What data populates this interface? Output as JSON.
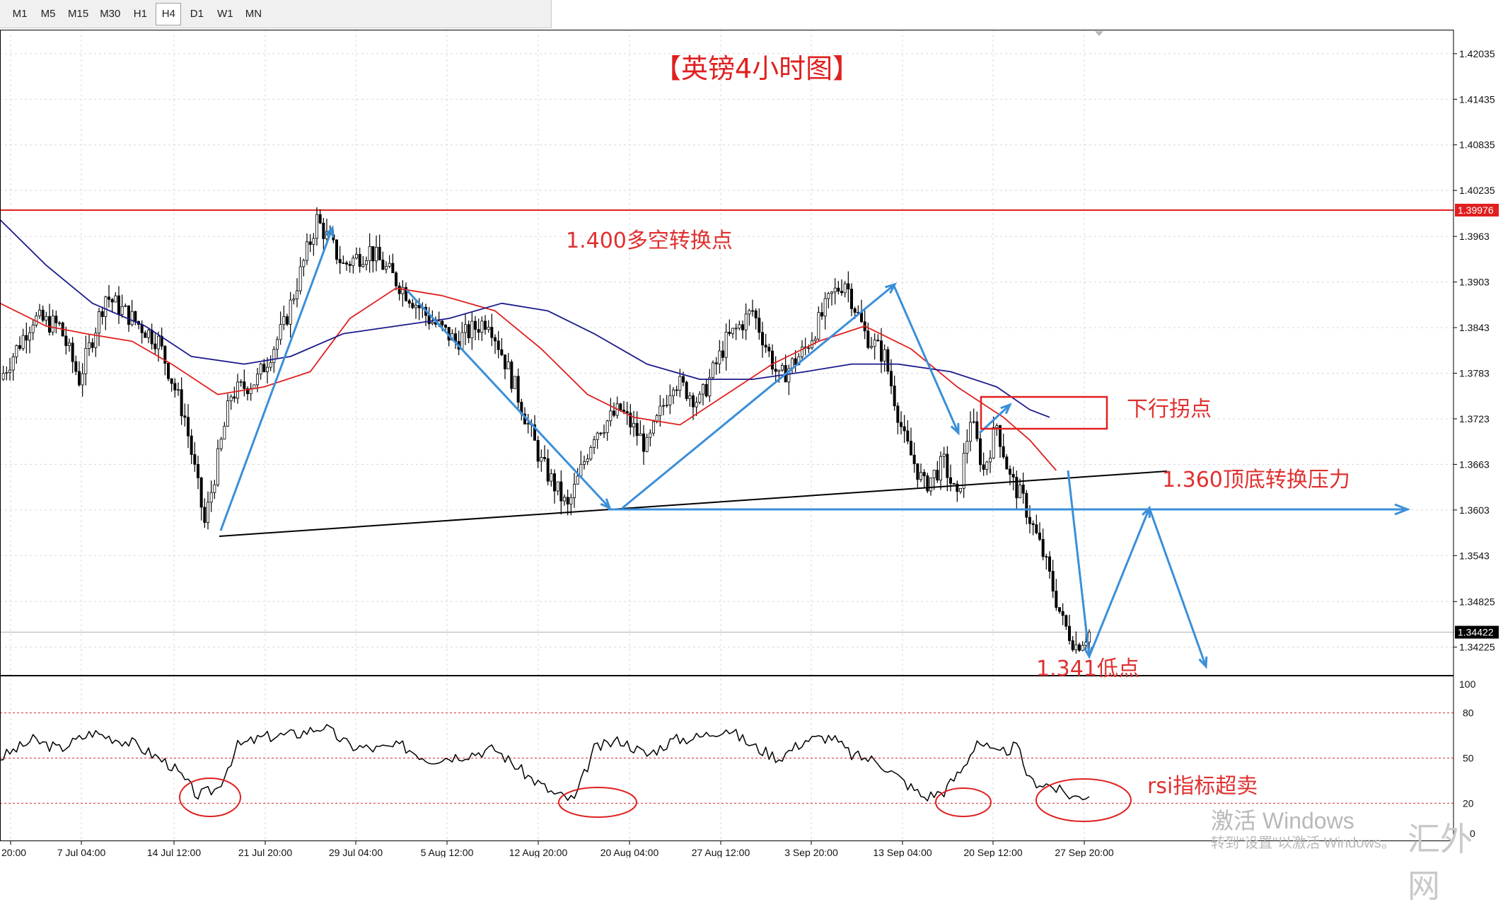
{
  "timeframes": [
    {
      "label": "M1"
    },
    {
      "label": "M5"
    },
    {
      "label": "M15"
    },
    {
      "label": "M30"
    },
    {
      "label": "H1"
    },
    {
      "label": "H4",
      "active": true
    },
    {
      "label": "D1"
    },
    {
      "label": "W1"
    },
    {
      "label": "MN"
    }
  ],
  "chart_data": [
    {
      "type": "candlestick",
      "title": "【英镑4小时图】",
      "y_ticks": [
        1.42035,
        1.41435,
        1.40835,
        1.40235,
        1.3963,
        1.3903,
        1.3843,
        1.3783,
        1.3723,
        1.3663,
        1.3603,
        1.3543,
        1.34825,
        1.34225
      ],
      "ylim": [
        1.3385,
        1.4235
      ],
      "x_ticks": [
        "20:00",
        "7 Jul 04:00",
        "14 Jul 12:00",
        "21 Jul 20:00",
        "29 Jul 04:00",
        "5 Aug 12:00",
        "12 Aug 20:00",
        "20 Aug 04:00",
        "27 Aug 12:00",
        "3 Sep 20:00",
        "13 Sep 04:00",
        "20 Sep 12:00",
        "27 Sep 20:00"
      ],
      "price_path": [
        {
          "bar": 0,
          "price": 1.3775
        },
        {
          "bar": 10,
          "price": 1.3855
        },
        {
          "bar": 18,
          "price": 1.3845
        },
        {
          "bar": 24,
          "price": 1.3775
        },
        {
          "bar": 32,
          "price": 1.3885
        },
        {
          "bar": 40,
          "price": 1.3855
        },
        {
          "bar": 48,
          "price": 1.3825
        },
        {
          "bar": 56,
          "price": 1.3725
        },
        {
          "bar": 62,
          "price": 1.3585
        },
        {
          "bar": 70,
          "price": 1.3755
        },
        {
          "bar": 78,
          "price": 1.3775
        },
        {
          "bar": 86,
          "price": 1.3845
        },
        {
          "bar": 96,
          "price": 1.3985
        },
        {
          "bar": 104,
          "price": 1.3925
        },
        {
          "bar": 112,
          "price": 1.3945
        },
        {
          "bar": 122,
          "price": 1.3895
        },
        {
          "bar": 130,
          "price": 1.3855
        },
        {
          "bar": 138,
          "price": 1.3825
        },
        {
          "bar": 148,
          "price": 1.3855
        },
        {
          "bar": 156,
          "price": 1.3765
        },
        {
          "bar": 164,
          "price": 1.3665
        },
        {
          "bar": 172,
          "price": 1.3605
        },
        {
          "bar": 180,
          "price": 1.3705
        },
        {
          "bar": 188,
          "price": 1.3735
        },
        {
          "bar": 196,
          "price": 1.3685
        },
        {
          "bar": 204,
          "price": 1.3775
        },
        {
          "bar": 212,
          "price": 1.3745
        },
        {
          "bar": 220,
          "price": 1.3825
        },
        {
          "bar": 228,
          "price": 1.3865
        },
        {
          "bar": 236,
          "price": 1.3775
        },
        {
          "bar": 244,
          "price": 1.3815
        },
        {
          "bar": 252,
          "price": 1.3885
        },
        {
          "bar": 256,
          "price": 1.3905
        },
        {
          "bar": 262,
          "price": 1.3835
        },
        {
          "bar": 268,
          "price": 1.3805
        },
        {
          "bar": 274,
          "price": 1.3695
        },
        {
          "bar": 280,
          "price": 1.3635
        },
        {
          "bar": 286,
          "price": 1.3665
        },
        {
          "bar": 290,
          "price": 1.3615
        },
        {
          "bar": 294,
          "price": 1.3725
        },
        {
          "bar": 298,
          "price": 1.3655
        },
        {
          "bar": 302,
          "price": 1.3715
        },
        {
          "bar": 306,
          "price": 1.3645
        },
        {
          "bar": 310,
          "price": 1.3615
        },
        {
          "bar": 316,
          "price": 1.3545
        },
        {
          "bar": 322,
          "price": 1.3455
        },
        {
          "bar": 326,
          "price": 1.3425
        },
        {
          "bar": 330,
          "price": 1.3442
        }
      ],
      "ma_red": [
        {
          "bar": 0,
          "price": 1.3875
        },
        {
          "bar": 14,
          "price": 1.3845
        },
        {
          "bar": 26,
          "price": 1.3835
        },
        {
          "bar": 40,
          "price": 1.3825
        },
        {
          "bar": 52,
          "price": 1.3795
        },
        {
          "bar": 66,
          "price": 1.3755
        },
        {
          "bar": 80,
          "price": 1.3765
        },
        {
          "bar": 94,
          "price": 1.3785
        },
        {
          "bar": 106,
          "price": 1.3855
        },
        {
          "bar": 120,
          "price": 1.3895
        },
        {
          "bar": 134,
          "price": 1.3885
        },
        {
          "bar": 150,
          "price": 1.3865
        },
        {
          "bar": 164,
          "price": 1.3815
        },
        {
          "bar": 178,
          "price": 1.3755
        },
        {
          "bar": 192,
          "price": 1.3725
        },
        {
          "bar": 206,
          "price": 1.3715
        },
        {
          "bar": 220,
          "price": 1.3755
        },
        {
          "bar": 234,
          "price": 1.3795
        },
        {
          "bar": 248,
          "price": 1.3825
        },
        {
          "bar": 262,
          "price": 1.3845
        },
        {
          "bar": 276,
          "price": 1.3815
        },
        {
          "bar": 290,
          "price": 1.3765
        },
        {
          "bar": 304,
          "price": 1.3725
        },
        {
          "bar": 312,
          "price": 1.3695
        },
        {
          "bar": 320,
          "price": 1.3655
        }
      ],
      "ma_blue": [
        {
          "bar": 0,
          "price": 1.3985
        },
        {
          "bar": 14,
          "price": 1.3925
        },
        {
          "bar": 28,
          "price": 1.3875
        },
        {
          "bar": 44,
          "price": 1.3845
        },
        {
          "bar": 58,
          "price": 1.3805
        },
        {
          "bar": 74,
          "price": 1.3795
        },
        {
          "bar": 88,
          "price": 1.3805
        },
        {
          "bar": 104,
          "price": 1.3835
        },
        {
          "bar": 120,
          "price": 1.3845
        },
        {
          "bar": 136,
          "price": 1.3855
        },
        {
          "bar": 152,
          "price": 1.3875
        },
        {
          "bar": 166,
          "price": 1.3865
        },
        {
          "bar": 180,
          "price": 1.3835
        },
        {
          "bar": 196,
          "price": 1.3795
        },
        {
          "bar": 212,
          "price": 1.3775
        },
        {
          "bar": 228,
          "price": 1.3775
        },
        {
          "bar": 244,
          "price": 1.3785
        },
        {
          "bar": 258,
          "price": 1.3795
        },
        {
          "bar": 272,
          "price": 1.3795
        },
        {
          "bar": 288,
          "price": 1.3785
        },
        {
          "bar": 302,
          "price": 1.3765
        },
        {
          "bar": 312,
          "price": 1.3735
        },
        {
          "bar": 318,
          "price": 1.3725
        }
      ],
      "horizontal_levels": [
        {
          "price": 1.39976,
          "color": "#e02020",
          "label": "1.39976"
        },
        {
          "price": 1.34422,
          "color": "#b0b0b0",
          "label": "1.34422"
        }
      ],
      "annotations": [
        {
          "text": "1.400多空转换点",
          "color": "#e03030"
        },
        {
          "text": "下行拐点",
          "color": "#e03030"
        },
        {
          "text": "1.360顶底转换压力",
          "color": "#e03030"
        },
        {
          "text": "1.341低点",
          "color": "#e03030"
        }
      ]
    },
    {
      "type": "line",
      "name": "RSI",
      "ylim": [
        0,
        100
      ],
      "y_ticks": [
        100,
        80,
        50,
        20,
        0
      ],
      "dashed_levels": [
        80,
        50,
        20
      ],
      "values_path": [
        {
          "bar": 0,
          "value": 50
        },
        {
          "bar": 10,
          "value": 62
        },
        {
          "bar": 18,
          "value": 56
        },
        {
          "bar": 28,
          "value": 67
        },
        {
          "bar": 40,
          "value": 60
        },
        {
          "bar": 52,
          "value": 45
        },
        {
          "bar": 60,
          "value": 25
        },
        {
          "bar": 66,
          "value": 30
        },
        {
          "bar": 72,
          "value": 58
        },
        {
          "bar": 80,
          "value": 64
        },
        {
          "bar": 90,
          "value": 66
        },
        {
          "bar": 98,
          "value": 71
        },
        {
          "bar": 106,
          "value": 58
        },
        {
          "bar": 114,
          "value": 56
        },
        {
          "bar": 122,
          "value": 58
        },
        {
          "bar": 130,
          "value": 49
        },
        {
          "bar": 140,
          "value": 52
        },
        {
          "bar": 150,
          "value": 56
        },
        {
          "bar": 160,
          "value": 38
        },
        {
          "bar": 168,
          "value": 26
        },
        {
          "bar": 174,
          "value": 22
        },
        {
          "bar": 180,
          "value": 56
        },
        {
          "bar": 188,
          "value": 62
        },
        {
          "bar": 196,
          "value": 52
        },
        {
          "bar": 204,
          "value": 62
        },
        {
          "bar": 212,
          "value": 64
        },
        {
          "bar": 220,
          "value": 70
        },
        {
          "bar": 228,
          "value": 58
        },
        {
          "bar": 236,
          "value": 50
        },
        {
          "bar": 244,
          "value": 62
        },
        {
          "bar": 252,
          "value": 64
        },
        {
          "bar": 258,
          "value": 52
        },
        {
          "bar": 266,
          "value": 48
        },
        {
          "bar": 274,
          "value": 34
        },
        {
          "bar": 280,
          "value": 24
        },
        {
          "bar": 286,
          "value": 28
        },
        {
          "bar": 292,
          "value": 44
        },
        {
          "bar": 296,
          "value": 62
        },
        {
          "bar": 302,
          "value": 52
        },
        {
          "bar": 308,
          "value": 58
        },
        {
          "bar": 312,
          "value": 35
        },
        {
          "bar": 318,
          "value": 32
        },
        {
          "bar": 322,
          "value": 27
        },
        {
          "bar": 326,
          "value": 24
        },
        {
          "bar": 330,
          "value": 26
        }
      ],
      "annotations": [
        {
          "text": "rsi指标超卖",
          "color": "#e03030"
        }
      ]
    }
  ],
  "watermark": {
    "line1": "激活 Windows",
    "line2": "转到\"设置\"以激活 Windows。",
    "brand": "汇外网"
  }
}
